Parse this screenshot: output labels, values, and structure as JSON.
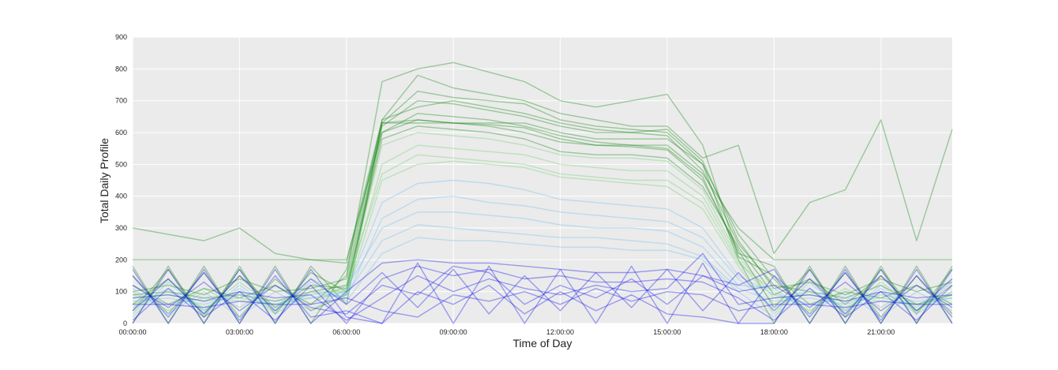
{
  "chart_data": {
    "type": "line",
    "title": "",
    "xlabel": "Time of Day",
    "ylabel": "Total Daily Profile",
    "xlim": [
      "00:00:00",
      "23:00:00"
    ],
    "ylim": [
      0,
      900
    ],
    "x_ticks": [
      "00:00:00",
      "03:00:00",
      "06:00:00",
      "09:00:00",
      "12:00:00",
      "15:00:00",
      "18:00:00",
      "21:00:00"
    ],
    "y_ticks": [
      0,
      100,
      200,
      300,
      400,
      500,
      600,
      700,
      800,
      900
    ],
    "grid": true,
    "background": "#ebebeb",
    "legend": "none",
    "x": [
      "00:00:00",
      "01:00:00",
      "02:00:00",
      "03:00:00",
      "04:00:00",
      "05:00:00",
      "06:00:00",
      "07:00:00",
      "08:00:00",
      "09:00:00",
      "10:00:00",
      "11:00:00",
      "12:00:00",
      "13:00:00",
      "14:00:00",
      "15:00:00",
      "16:00:00",
      "17:00:00",
      "18:00:00",
      "19:00:00",
      "20:00:00",
      "21:00:00",
      "22:00:00",
      "23:00:00"
    ],
    "series": [
      {
        "color": "#008000",
        "values": [
          180,
          0,
          180,
          0,
          180,
          0,
          170,
          630,
          630,
          630,
          630,
          630,
          600,
          580,
          580,
          580,
          500,
          200,
          0,
          180,
          0,
          180,
          0,
          180
        ]
      },
      {
        "color": "#008000",
        "values": [
          0,
          180,
          0,
          180,
          0,
          180,
          60,
          630,
          640,
          630,
          620,
          600,
          570,
          560,
          560,
          550,
          460,
          220,
          180,
          0,
          180,
          0,
          180,
          0
        ]
      },
      {
        "color": "#008000",
        "values": [
          90,
          100,
          80,
          90,
          70,
          100,
          120,
          620,
          700,
          690,
          670,
          650,
          620,
          600,
          600,
          590,
          480,
          250,
          120,
          100,
          80,
          120,
          60,
          90
        ]
      },
      {
        "color": "#008000",
        "values": [
          120,
          60,
          110,
          80,
          120,
          60,
          150,
          760,
          800,
          820,
          790,
          760,
          700,
          680,
          700,
          720,
          560,
          210,
          150,
          60,
          100,
          80,
          120,
          60
        ]
      },
      {
        "color": "#008000",
        "values": [
          300,
          280,
          260,
          300,
          220,
          200,
          190,
          640,
          780,
          740,
          720,
          700,
          660,
          640,
          620,
          620,
          520,
          560,
          220,
          380,
          420,
          640,
          260,
          610
        ]
      },
      {
        "color": "#008000",
        "values": [
          200,
          200,
          200,
          200,
          200,
          200,
          200,
          600,
          660,
          650,
          640,
          620,
          590,
          570,
          560,
          560,
          470,
          300,
          200,
          200,
          200,
          200,
          200,
          200
        ]
      },
      {
        "color": "#008000",
        "values": [
          60,
          140,
          30,
          150,
          50,
          120,
          110,
          580,
          620,
          610,
          600,
          580,
          540,
          530,
          530,
          520,
          430,
          240,
          90,
          140,
          60,
          150,
          40,
          120
        ]
      },
      {
        "color": "#008000",
        "values": [
          150,
          30,
          160,
          20,
          140,
          40,
          90,
          630,
          730,
          710,
          700,
          690,
          640,
          620,
          610,
          600,
          500,
          280,
          140,
          30,
          160,
          20,
          150,
          30
        ]
      },
      {
        "color": "#008000",
        "values": [
          100,
          120,
          90,
          140,
          100,
          110,
          140,
          640,
          680,
          700,
          680,
          660,
          630,
          610,
          600,
          610,
          510,
          260,
          110,
          130,
          90,
          140,
          100,
          130
        ]
      },
      {
        "color": "#008000",
        "values": [
          40,
          170,
          20,
          170,
          30,
          160,
          100,
          600,
          640,
          630,
          625,
          615,
          580,
          560,
          555,
          545,
          450,
          230,
          50,
          170,
          20,
          170,
          30,
          170
        ]
      },
      {
        "color": "#66cc66",
        "values": [
          80,
          90,
          70,
          80,
          60,
          90,
          110,
          560,
          600,
          590,
          580,
          560,
          530,
          520,
          520,
          510,
          420,
          210,
          80,
          90,
          70,
          80,
          60,
          90
        ]
      },
      {
        "color": "#66cc66",
        "values": [
          60,
          100,
          50,
          100,
          40,
          100,
          100,
          500,
          560,
          550,
          540,
          530,
          500,
          490,
          480,
          480,
          400,
          200,
          60,
          100,
          50,
          100,
          40,
          100
        ]
      },
      {
        "color": "#66cc66",
        "values": [
          100,
          40,
          110,
          50,
          120,
          60,
          120,
          470,
          530,
          520,
          510,
          500,
          470,
          460,
          450,
          450,
          380,
          190,
          100,
          40,
          110,
          50,
          120,
          60
        ]
      },
      {
        "color": "#66cc66",
        "values": [
          30,
          140,
          40,
          130,
          50,
          140,
          90,
          450,
          500,
          510,
          500,
          490,
          460,
          450,
          440,
          430,
          360,
          180,
          30,
          140,
          40,
          130,
          50,
          140
        ]
      },
      {
        "color": "#66bbee",
        "values": [
          90,
          60,
          80,
          70,
          60,
          80,
          100,
          380,
          440,
          450,
          440,
          420,
          390,
          380,
          370,
          360,
          300,
          150,
          90,
          60,
          80,
          70,
          60,
          80
        ]
      },
      {
        "color": "#66bbee",
        "values": [
          50,
          110,
          40,
          110,
          30,
          100,
          80,
          330,
          390,
          400,
          380,
          370,
          350,
          340,
          330,
          320,
          270,
          140,
          50,
          110,
          40,
          110,
          30,
          100
        ]
      },
      {
        "color": "#66bbee",
        "values": [
          110,
          30,
          100,
          20,
          100,
          40,
          110,
          300,
          350,
          350,
          340,
          330,
          310,
          300,
          300,
          290,
          240,
          120,
          110,
          30,
          100,
          20,
          100,
          40
        ]
      },
      {
        "color": "#66bbee",
        "values": [
          70,
          80,
          60,
          90,
          70,
          80,
          90,
          260,
          310,
          300,
          290,
          280,
          270,
          270,
          260,
          250,
          210,
          110,
          70,
          80,
          60,
          90,
          70,
          80
        ]
      },
      {
        "color": "#66bbee",
        "values": [
          20,
          130,
          30,
          120,
          40,
          130,
          70,
          220,
          270,
          260,
          260,
          250,
          240,
          240,
          230,
          230,
          200,
          100,
          20,
          130,
          30,
          120,
          40,
          130
        ]
      },
      {
        "color": "#0000ee",
        "values": [
          170,
          0,
          170,
          0,
          170,
          0,
          100,
          190,
          200,
          190,
          190,
          180,
          170,
          160,
          160,
          170,
          150,
          120,
          170,
          0,
          170,
          0,
          170,
          0
        ]
      },
      {
        "color": "#0000ee",
        "values": [
          0,
          170,
          0,
          170,
          0,
          170,
          20,
          0,
          190,
          0,
          180,
          0,
          170,
          0,
          180,
          0,
          190,
          0,
          0,
          170,
          0,
          170,
          0,
          170
        ]
      },
      {
        "color": "#0000ee",
        "values": [
          120,
          50,
          130,
          40,
          120,
          50,
          30,
          120,
          90,
          180,
          160,
          60,
          120,
          80,
          140,
          60,
          150,
          100,
          120,
          50,
          130,
          40,
          120,
          50
        ]
      },
      {
        "color": "#0000ee",
        "values": [
          40,
          140,
          30,
          150,
          40,
          140,
          60,
          160,
          50,
          170,
          30,
          150,
          40,
          160,
          50,
          170,
          40,
          160,
          40,
          140,
          30,
          150,
          40,
          140
        ]
      },
      {
        "color": "#0000ee",
        "values": [
          80,
          90,
          70,
          100,
          80,
          90,
          10,
          80,
          150,
          100,
          140,
          110,
          90,
          120,
          100,
          110,
          220,
          60,
          80,
          90,
          70,
          100,
          80,
          90
        ]
      },
      {
        "color": "#0000ee",
        "values": [
          150,
          20,
          160,
          10,
          150,
          20,
          40,
          0,
          100,
          60,
          120,
          30,
          100,
          40,
          90,
          30,
          20,
          0,
          150,
          20,
          160,
          10,
          150,
          20
        ]
      },
      {
        "color": "#0000ee",
        "values": [
          10,
          110,
          20,
          100,
          10,
          120,
          0,
          140,
          180,
          150,
          170,
          140,
          150,
          130,
          130,
          140,
          130,
          80,
          10,
          110,
          20,
          100,
          10,
          120
        ]
      },
      {
        "color": "#0000ee",
        "values": [
          60,
          60,
          50,
          70,
          60,
          60,
          80,
          40,
          20,
          90,
          70,
          100,
          60,
          110,
          70,
          100,
          90,
          40,
          60,
          60,
          50,
          70,
          60,
          60
        ]
      }
    ]
  }
}
